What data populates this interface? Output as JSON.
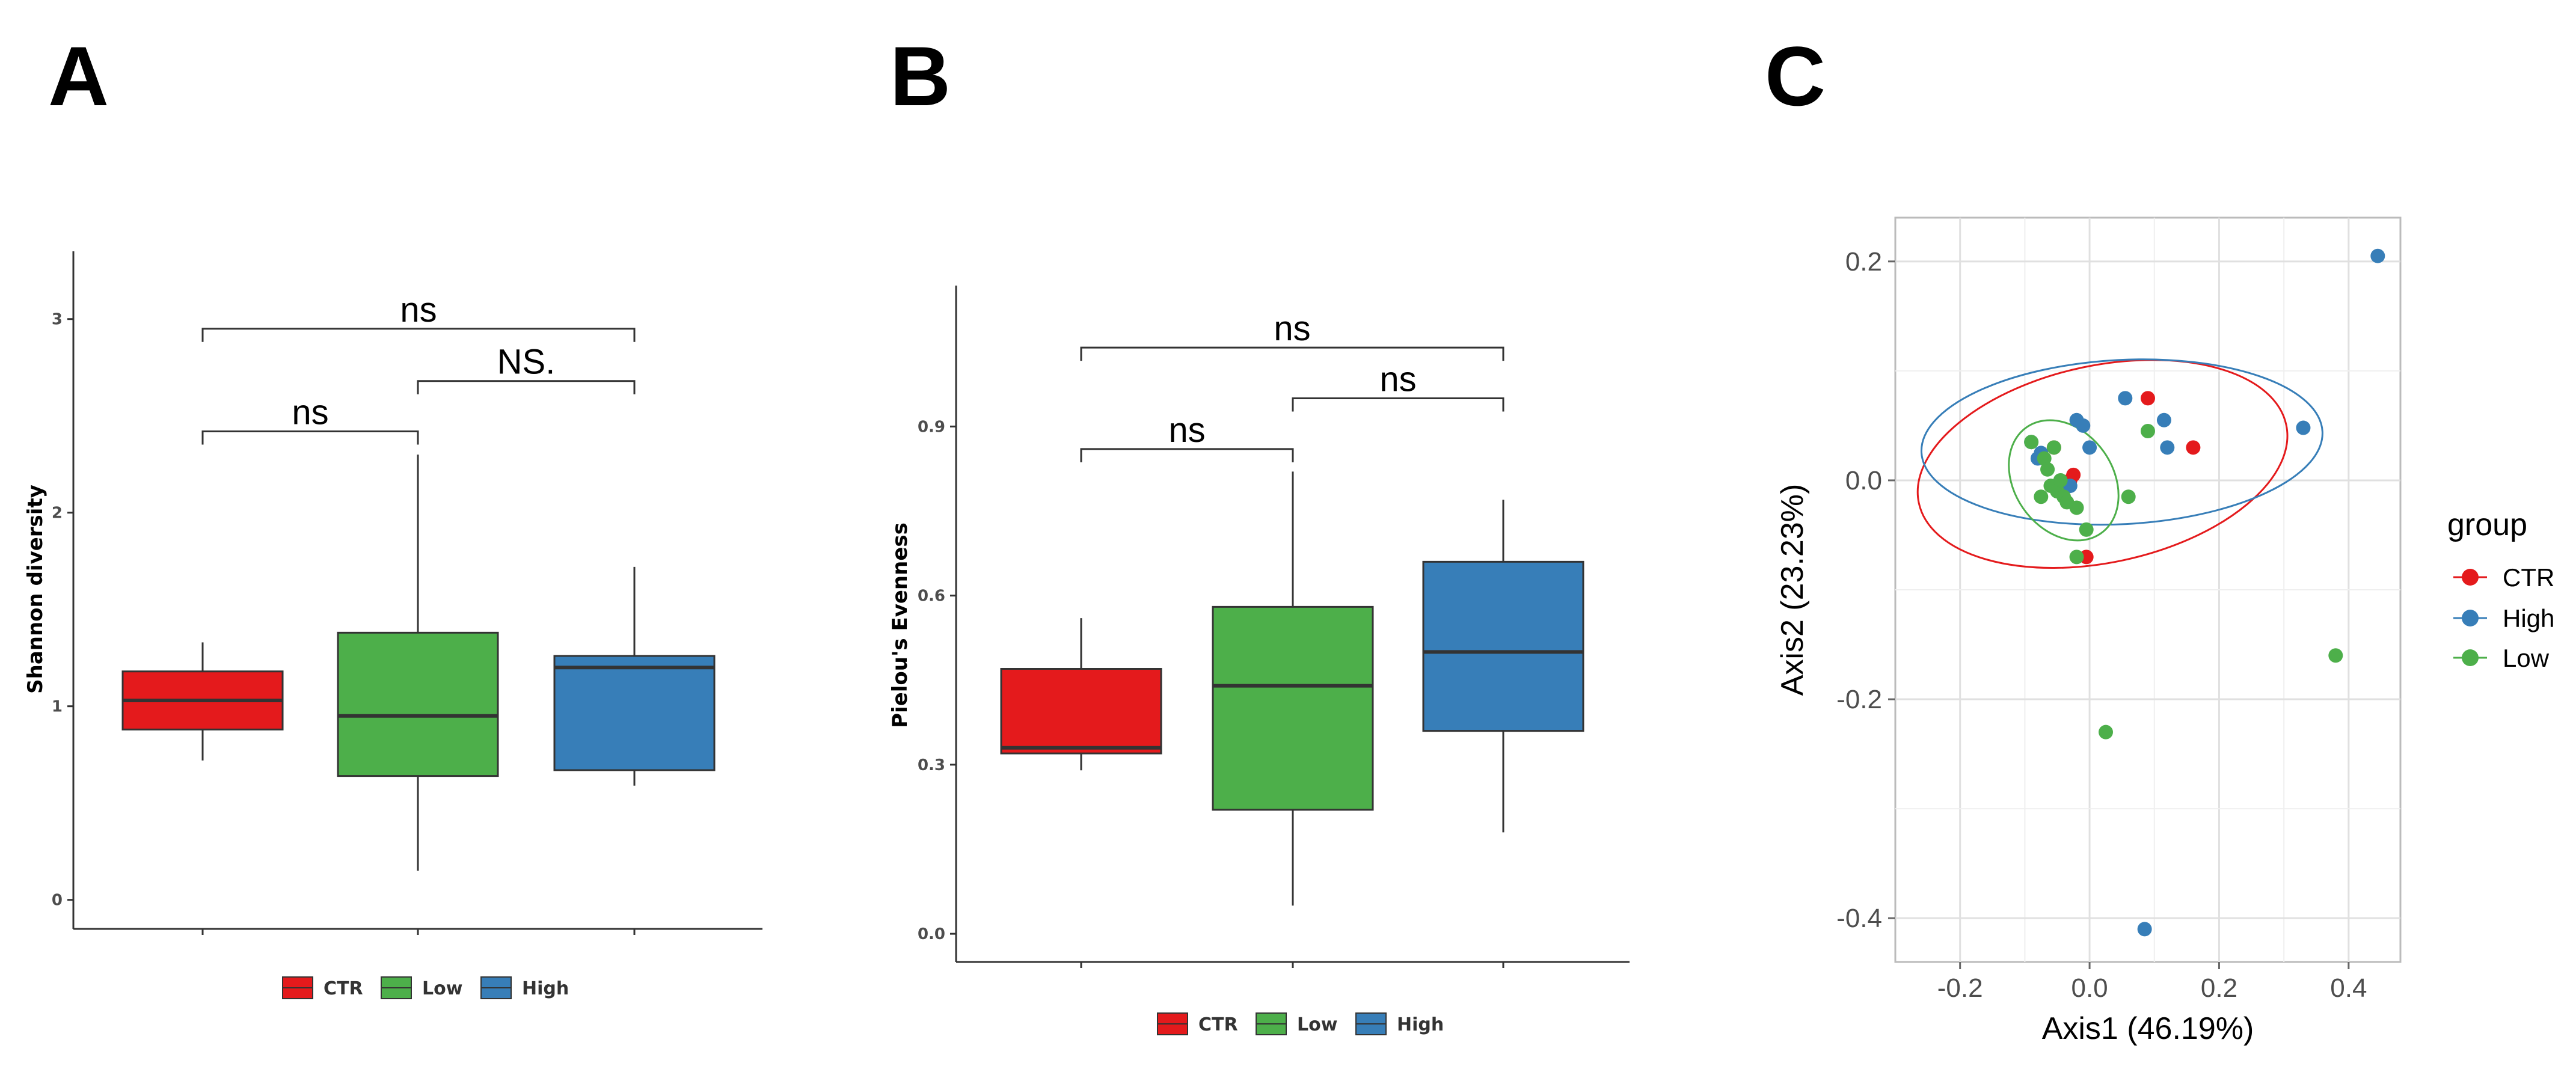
{
  "colors": {
    "CTR": "#e41a1c",
    "Low": "#4daf4a",
    "High": "#377eb8"
  },
  "chart_data": [
    {
      "panel": "A",
      "type": "boxplot",
      "title": "",
      "xlabel": "",
      "ylabel": "Shannon diversity",
      "ylim": [
        -0.15,
        3.35
      ],
      "yticks": [
        0,
        1,
        2,
        3
      ],
      "groups": [
        {
          "name": "CTR",
          "min": 0.72,
          "q1": 0.88,
          "median": 1.03,
          "q3": 1.18,
          "max": 1.33
        },
        {
          "name": "Low",
          "min": 0.15,
          "q1": 0.64,
          "median": 0.95,
          "q3": 1.38,
          "max": 2.3
        },
        {
          "name": "High",
          "min": 0.59,
          "q1": 0.67,
          "median": 1.2,
          "q3": 1.26,
          "max": 1.72
        }
      ],
      "comparisons": [
        {
          "from": "CTR",
          "to": "High",
          "label": "ns",
          "y": 2.95
        },
        {
          "from": "Low",
          "to": "High",
          "label": "NS.",
          "y": 2.68
        },
        {
          "from": "CTR",
          "to": "Low",
          "label": "ns",
          "y": 2.42
        }
      ],
      "legend": [
        "CTR",
        "Low",
        "High"
      ]
    },
    {
      "panel": "B",
      "type": "boxplot",
      "title": "",
      "xlabel": "",
      "ylabel": "Pielou's Evenness",
      "ylim": [
        -0.05,
        1.15
      ],
      "yticks": [
        "0.0",
        "0.3",
        "0.6",
        "0.9"
      ],
      "ytick_values": [
        0,
        0.3,
        0.6,
        0.9
      ],
      "groups": [
        {
          "name": "CTR",
          "min": 0.29,
          "q1": 0.32,
          "median": 0.33,
          "q3": 0.47,
          "max": 0.56
        },
        {
          "name": "Low",
          "min": 0.05,
          "q1": 0.22,
          "median": 0.44,
          "q3": 0.58,
          "max": 0.82
        },
        {
          "name": "High",
          "min": 0.18,
          "q1": 0.36,
          "median": 0.5,
          "q3": 0.66,
          "max": 0.77
        }
      ],
      "comparisons": [
        {
          "from": "CTR",
          "to": "High",
          "label": "ns",
          "y": 1.04
        },
        {
          "from": "Low",
          "to": "High",
          "label": "ns",
          "y": 0.95
        },
        {
          "from": "CTR",
          "to": "Low",
          "label": "ns",
          "y": 0.86
        }
      ],
      "legend": [
        "CTR",
        "Low",
        "High"
      ]
    },
    {
      "panel": "C",
      "type": "scatter",
      "title": "",
      "xlabel": "Axis1 (46.19%)",
      "ylabel": "Axis2 (23.23%)",
      "xlim": [
        -0.3,
        0.48
      ],
      "ylim": [
        -0.44,
        0.24
      ],
      "xticks": [
        "-0.2",
        "0.0",
        "0.2",
        "0.4"
      ],
      "xtick_values": [
        -0.2,
        0,
        0.2,
        0.4
      ],
      "yticks": [
        "0.2",
        "0.0",
        "-0.2",
        "-0.4"
      ],
      "ytick_values": [
        0.2,
        0,
        -0.2,
        -0.4
      ],
      "grid": true,
      "legend_title": "group",
      "legend": [
        "CTR",
        "High",
        "Low"
      ],
      "series": [
        {
          "name": "CTR",
          "points": [
            [
              -0.055,
              0.03
            ],
            [
              -0.03,
              0.0
            ],
            [
              -0.025,
              0.005
            ],
            [
              0.09,
              0.075
            ],
            [
              0.16,
              0.03
            ],
            [
              -0.005,
              -0.07
            ]
          ]
        },
        {
          "name": "High",
          "points": [
            [
              0.445,
              0.205
            ],
            [
              -0.09,
              0.035
            ],
            [
              -0.08,
              0.02
            ],
            [
              -0.075,
              0.025
            ],
            [
              -0.03,
              -0.005
            ],
            [
              -0.02,
              0.055
            ],
            [
              -0.01,
              0.05
            ],
            [
              0.0,
              0.03
            ],
            [
              0.055,
              0.075
            ],
            [
              0.115,
              0.055
            ],
            [
              0.12,
              0.03
            ],
            [
              0.33,
              0.048
            ],
            [
              0.085,
              -0.41
            ]
          ]
        },
        {
          "name": "Low",
          "points": [
            [
              -0.09,
              0.035
            ],
            [
              -0.07,
              0.02
            ],
            [
              -0.065,
              0.01
            ],
            [
              -0.06,
              -0.005
            ],
            [
              -0.055,
              0.03
            ],
            [
              -0.05,
              -0.01
            ],
            [
              -0.045,
              0.0
            ],
            [
              -0.04,
              -0.015
            ],
            [
              -0.035,
              -0.02
            ],
            [
              -0.075,
              -0.015
            ],
            [
              -0.02,
              -0.025
            ],
            [
              -0.005,
              -0.045
            ],
            [
              -0.02,
              -0.07
            ],
            [
              0.06,
              -0.015
            ],
            [
              0.09,
              0.045
            ],
            [
              0.38,
              -0.16
            ],
            [
              0.025,
              -0.23
            ]
          ]
        }
      ],
      "ellipses": [
        {
          "group": "CTR",
          "center": [
            0.02,
            0.015
          ],
          "rx": 0.29,
          "ry": 0.09,
          "angle_deg": 12
        },
        {
          "group": "High",
          "center": [
            0.05,
            0.035
          ],
          "rx": 0.31,
          "ry": 0.075,
          "angle_deg": 3
        },
        {
          "group": "Low",
          "center": [
            -0.04,
            0.0
          ],
          "rx": 0.1,
          "ry": 0.045,
          "angle_deg": -55
        }
      ]
    }
  ]
}
